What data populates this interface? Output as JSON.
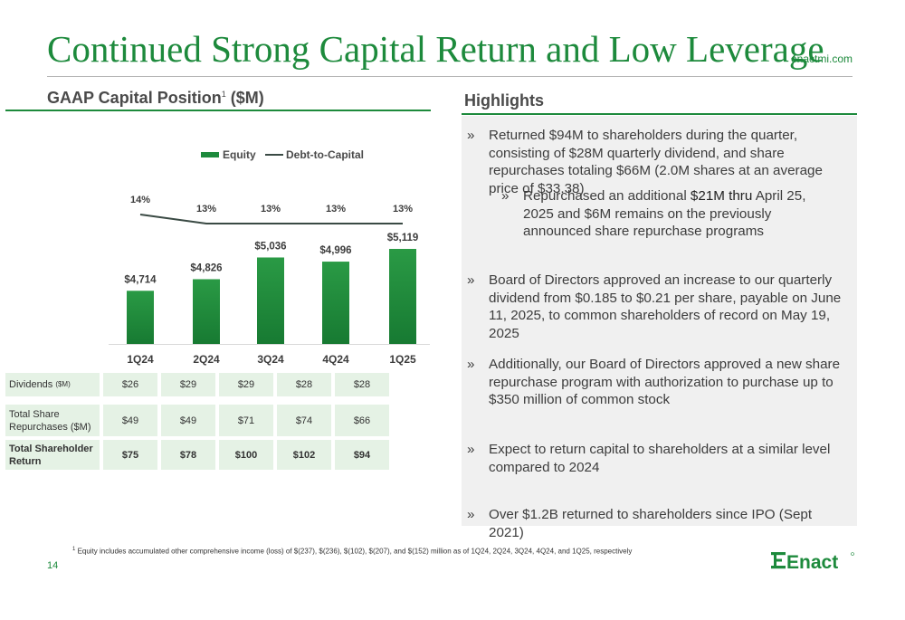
{
  "page": {
    "title": "Continued Strong Capital Return and Low Leverage",
    "site": "enactmi.com",
    "page_number": "14"
  },
  "left_section": {
    "heading": "GAAP Capital Position",
    "heading_sup": "1",
    "heading_suffix": " ($M)"
  },
  "right_section": {
    "heading": "Highlights"
  },
  "chart_data": {
    "type": "bar",
    "categories": [
      "1Q24",
      "2Q24",
      "3Q24",
      "4Q24",
      "1Q25"
    ],
    "series": [
      {
        "name": "Equity",
        "kind": "bar",
        "color": "#1d8a3c",
        "values": [
          4714,
          4826,
          5036,
          4996,
          5119
        ],
        "labels": [
          "$4,714",
          "$4,826",
          "$5,036",
          "$4,996",
          "$5,119"
        ]
      },
      {
        "name": "Debt-to-Capital",
        "kind": "line",
        "color": "#3a4a44",
        "values": [
          14,
          13,
          13,
          13,
          13
        ],
        "labels": [
          "14%",
          "13%",
          "13%",
          "13%",
          "13%"
        ]
      }
    ],
    "legend_position": "top",
    "grid": false
  },
  "table": {
    "rows": [
      {
        "label": "Dividends",
        "unit": "($M)",
        "values": [
          "$26",
          "$29",
          "$29",
          "$28",
          "$28"
        ],
        "bold": false
      },
      {
        "label": "Total Share Repurchases ($M)",
        "unit": "",
        "values": [
          "$49",
          "$49",
          "$71",
          "$74",
          "$66"
        ],
        "bold": false
      },
      {
        "label": "Total Shareholder Return",
        "unit": "",
        "values": [
          "$75",
          "$78",
          "$100",
          "$102",
          "$94"
        ],
        "bold": true
      }
    ]
  },
  "highlights": {
    "marker": "»",
    "b1": "Returned $94M to shareholders during the quarter, consisting of $28M quarterly dividend, and share repurchases totaling $66M (2.0M shares at an average price of $33.38)",
    "b1_sub_pre": "Repurchased an additional ",
    "b1_sub_mid": "$21M thru",
    "b1_sub_post": " April 25, 2025 and $6M remains on the previously announced share repurchase programs",
    "b2": "Board of Directors approved an increase to our quarterly dividend from $0.185 to $0.21 per share, payable on June 11, 2025, to common shareholders of record on May 19, 2025",
    "b3": "Additionally, our Board of Directors approved a new share repurchase program with authorization to purchase up to $350 million of common stock",
    "b4": "Expect to return capital to shareholders at a similar level compared to 2024",
    "b5": "Over $1.2B returned to shareholders since IPO (Sept 2021)"
  },
  "footnote": {
    "sup": "1",
    "text": " Equity includes accumulated other comprehensive income (loss) of $(237), $(236), $(102), $(207), and $(152) million as of 1Q24, 2Q24, 3Q24, 4Q24, and 1Q25, respectively"
  },
  "logo": {
    "text": "Enact",
    "color": "#1d8a3c"
  }
}
